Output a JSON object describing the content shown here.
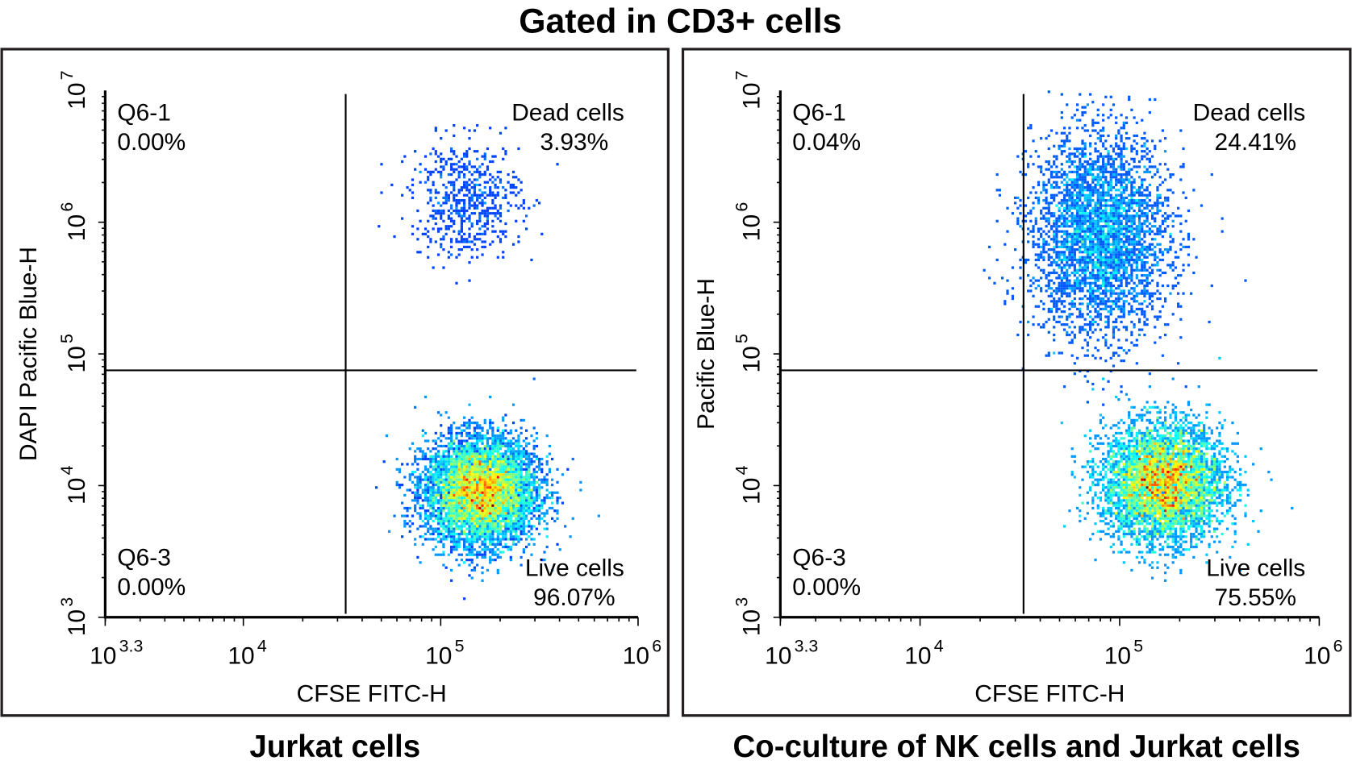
{
  "title": "Gated in CD3+ cells",
  "chart_data": [
    {
      "type": "scatter",
      "subtype": "flow-cytometry-density-dot-plot",
      "caption": "Jurkat cells",
      "xlabel": "CFSE FITC-H",
      "ylabel": "DAPI Pacific Blue-H",
      "xscale": "log",
      "yscale": "log",
      "xlim": [
        1995,
        1000000
      ],
      "ylim": [
        1000,
        10000000
      ],
      "xticks": [
        {
          "base": "10",
          "exp": "3.3"
        },
        {
          "base": "10",
          "exp": "4"
        },
        {
          "base": "10",
          "exp": "5"
        },
        {
          "base": "10",
          "exp": "6"
        }
      ],
      "yticks": [
        {
          "base": "10",
          "exp": "3"
        },
        {
          "base": "10",
          "exp": "4"
        },
        {
          "base": "10",
          "exp": "5"
        },
        {
          "base": "10",
          "exp": "6"
        },
        {
          "base": "10",
          "exp": "7"
        }
      ],
      "gate": {
        "x": 33000,
        "y": 75000
      },
      "quadrants": {
        "ul": {
          "name": "Q6-1",
          "value": "0.00%"
        },
        "ur": {
          "name": "Dead cells",
          "value": "3.93%"
        },
        "ll": {
          "name": "Q6-3",
          "value": "0.00%"
        },
        "lr": {
          "name": "Live cells",
          "value": "96.07%"
        }
      },
      "populations": [
        {
          "center": [
            160000,
            9000
          ],
          "spread_log": [
            0.14,
            0.2
          ],
          "fraction": 0.9607
        },
        {
          "center": [
            135000,
            1500000
          ],
          "spread_log": [
            0.14,
            0.22
          ],
          "fraction": 0.0393
        }
      ],
      "grid": false
    },
    {
      "type": "scatter",
      "subtype": "flow-cytometry-density-dot-plot",
      "caption": "Co-culture of NK cells and Jurkat cells",
      "xlabel": "CFSE FITC-H",
      "ylabel": "Pacific Blue-H",
      "xscale": "log",
      "yscale": "log",
      "xlim": [
        1995,
        1000000
      ],
      "ylim": [
        1000,
        10000000
      ],
      "xticks": [
        {
          "base": "10",
          "exp": "3.3"
        },
        {
          "base": "10",
          "exp": "4"
        },
        {
          "base": "10",
          "exp": "5"
        },
        {
          "base": "10",
          "exp": "6"
        }
      ],
      "yticks": [
        {
          "base": "10",
          "exp": "3"
        },
        {
          "base": "10",
          "exp": "4"
        },
        {
          "base": "10",
          "exp": "5"
        },
        {
          "base": "10",
          "exp": "6"
        },
        {
          "base": "10",
          "exp": "7"
        }
      ],
      "gate": {
        "x": 33000,
        "y": 75000
      },
      "quadrants": {
        "ul": {
          "name": "Q6-1",
          "value": "0.04%"
        },
        "ur": {
          "name": "Dead cells",
          "value": "24.41%"
        },
        "ll": {
          "name": "Q6-3",
          "value": "0.00%"
        },
        "lr": {
          "name": "Live cells",
          "value": "75.55%"
        }
      },
      "populations": [
        {
          "center": [
            165000,
            10500
          ],
          "spread_log": [
            0.15,
            0.22
          ],
          "fraction": 0.7555
        },
        {
          "center": [
            80000,
            800000
          ],
          "spread_log": [
            0.17,
            0.38
          ],
          "fraction": 0.2441
        },
        {
          "center": [
            22000,
            400000
          ],
          "spread_log": [
            0.1,
            0.1
          ],
          "fraction": 0.0004
        }
      ],
      "grid": false
    }
  ]
}
